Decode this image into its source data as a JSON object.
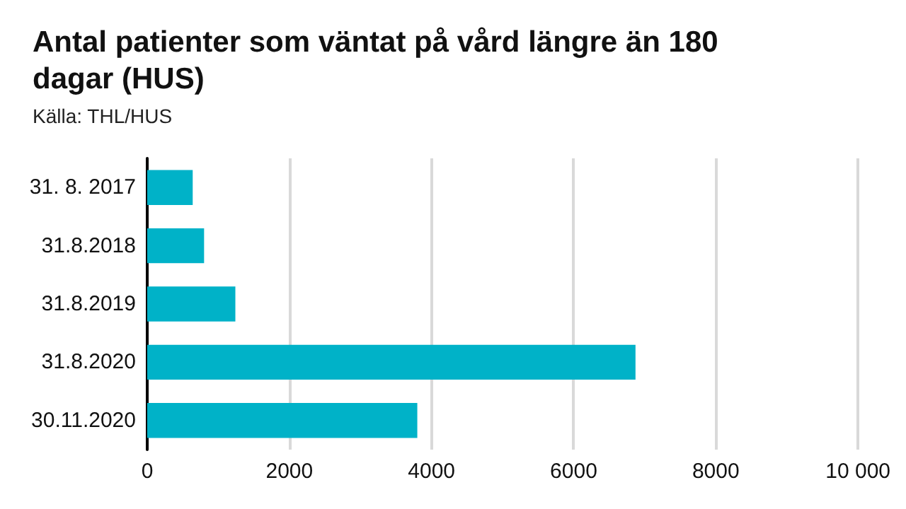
{
  "chart_data": {
    "type": "bar",
    "orientation": "horizontal",
    "title": "Antal patienter som väntat på vård längre än 180 dagar (HUS)",
    "subtitle": "Källa: THL/HUS",
    "categories": [
      "31. 8. 2017",
      "31.8.2018",
      "31.8.2019",
      "31.8.2020",
      "30.11.2020"
    ],
    "values": [
      640,
      800,
      1240,
      6870,
      3800
    ],
    "color": "#00b2c8",
    "xlim": [
      0,
      10000
    ],
    "xticks": [
      0,
      2000,
      4000,
      6000,
      8000,
      {
        "value": 10000,
        "label": "10 000"
      }
    ],
    "grid": "x"
  }
}
